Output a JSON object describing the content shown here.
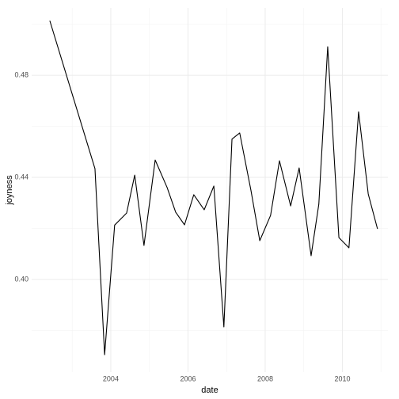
{
  "chart_data": {
    "type": "line",
    "x_label": "date",
    "y_label": "joyness",
    "x": [
      2002.42,
      2003.59,
      2003.84,
      2004.1,
      2004.41,
      2004.62,
      2004.86,
      2005.15,
      2005.46,
      2005.68,
      2005.91,
      2006.15,
      2006.42,
      2006.67,
      2006.93,
      2007.14,
      2007.34,
      2007.63,
      2007.86,
      2008.14,
      2008.37,
      2008.66,
      2008.88,
      2009.19,
      2009.39,
      2009.62,
      2009.91,
      2010.17,
      2010.42,
      2010.67,
      2010.91
    ],
    "series": [
      {
        "name": "joyness",
        "color": "#000000",
        "values": [
          0.5014,
          0.4434,
          0.3705,
          0.4213,
          0.426,
          0.4409,
          0.4133,
          0.4468,
          0.436,
          0.4264,
          0.4214,
          0.4332,
          0.4273,
          0.4366,
          0.3814,
          0.455,
          0.4574,
          0.435,
          0.4152,
          0.4251,
          0.4465,
          0.4288,
          0.4437,
          0.4093,
          0.4295,
          0.4912,
          0.4164,
          0.4124,
          0.4657,
          0.4335,
          0.4198
        ]
      }
    ],
    "xlim": [
      2001.95,
      2011.18
    ],
    "xticks": [
      2004,
      2006,
      2008,
      2010
    ],
    "minor_xticks": [
      2003,
      2005,
      2007,
      2009,
      2011
    ],
    "ylim": [
      0.3637,
      0.5064
    ],
    "yticks": [
      {
        "value": 0.4,
        "label": "0.40"
      },
      {
        "value": 0.44,
        "label": "0.44"
      },
      {
        "value": 0.48,
        "label": "0.48"
      }
    ],
    "minor_yticks": [
      0.38,
      0.42,
      0.46,
      0.5
    ],
    "grid": true
  }
}
